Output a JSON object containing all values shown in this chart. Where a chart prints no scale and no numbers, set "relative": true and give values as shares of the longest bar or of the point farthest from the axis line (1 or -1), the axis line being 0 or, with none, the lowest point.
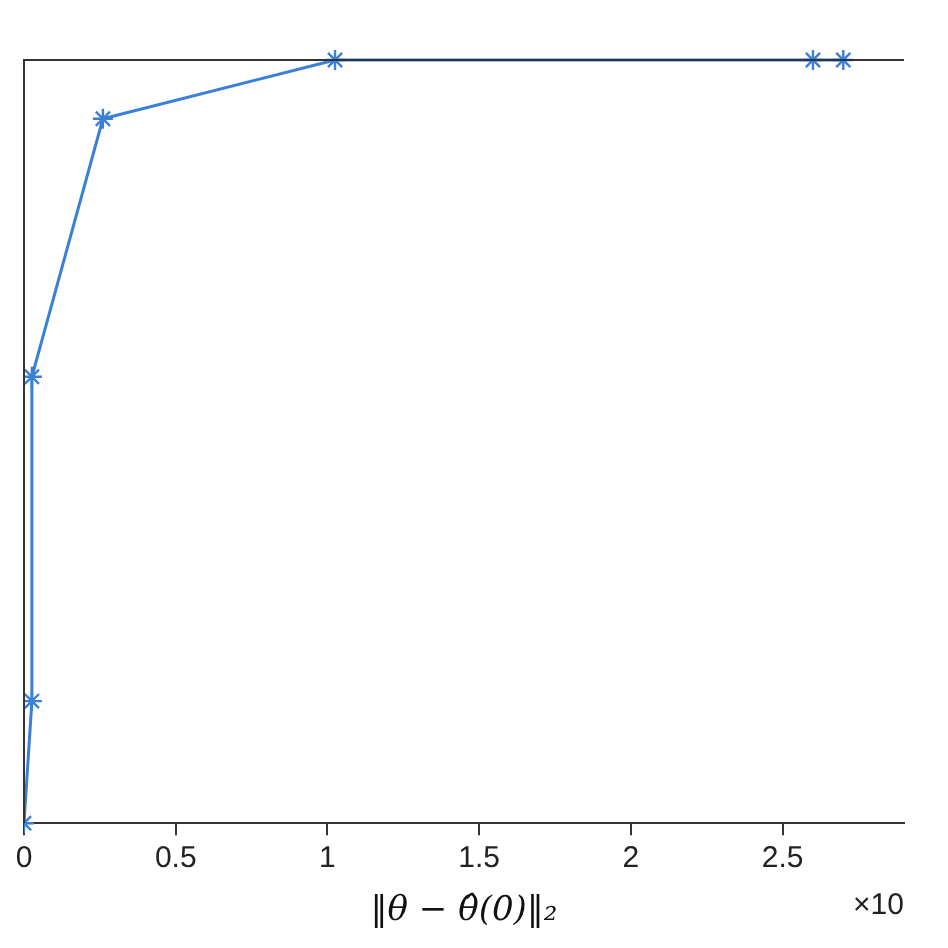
{
  "chart_data": {
    "type": "line",
    "xlabel": "‖θ − θ̂(0)‖₂",
    "annotations": [
      "×10"
    ],
    "relative": true,
    "x": [
      0,
      0.026,
      0.026,
      0.26,
      1.025,
      2.6,
      2.7
    ],
    "series": [
      {
        "color": "#3b7fd9",
        "values": [
          0,
          0.16,
          0.585,
          0.923,
          1,
          1,
          1
        ]
      }
    ],
    "xlim": [
      0,
      2.9
    ],
    "xticks": [
      0,
      0.5,
      1,
      1.5,
      2,
      2.5
    ],
    "grid": false,
    "legend": false,
    "marker": "cross",
    "line_style": "solid"
  }
}
